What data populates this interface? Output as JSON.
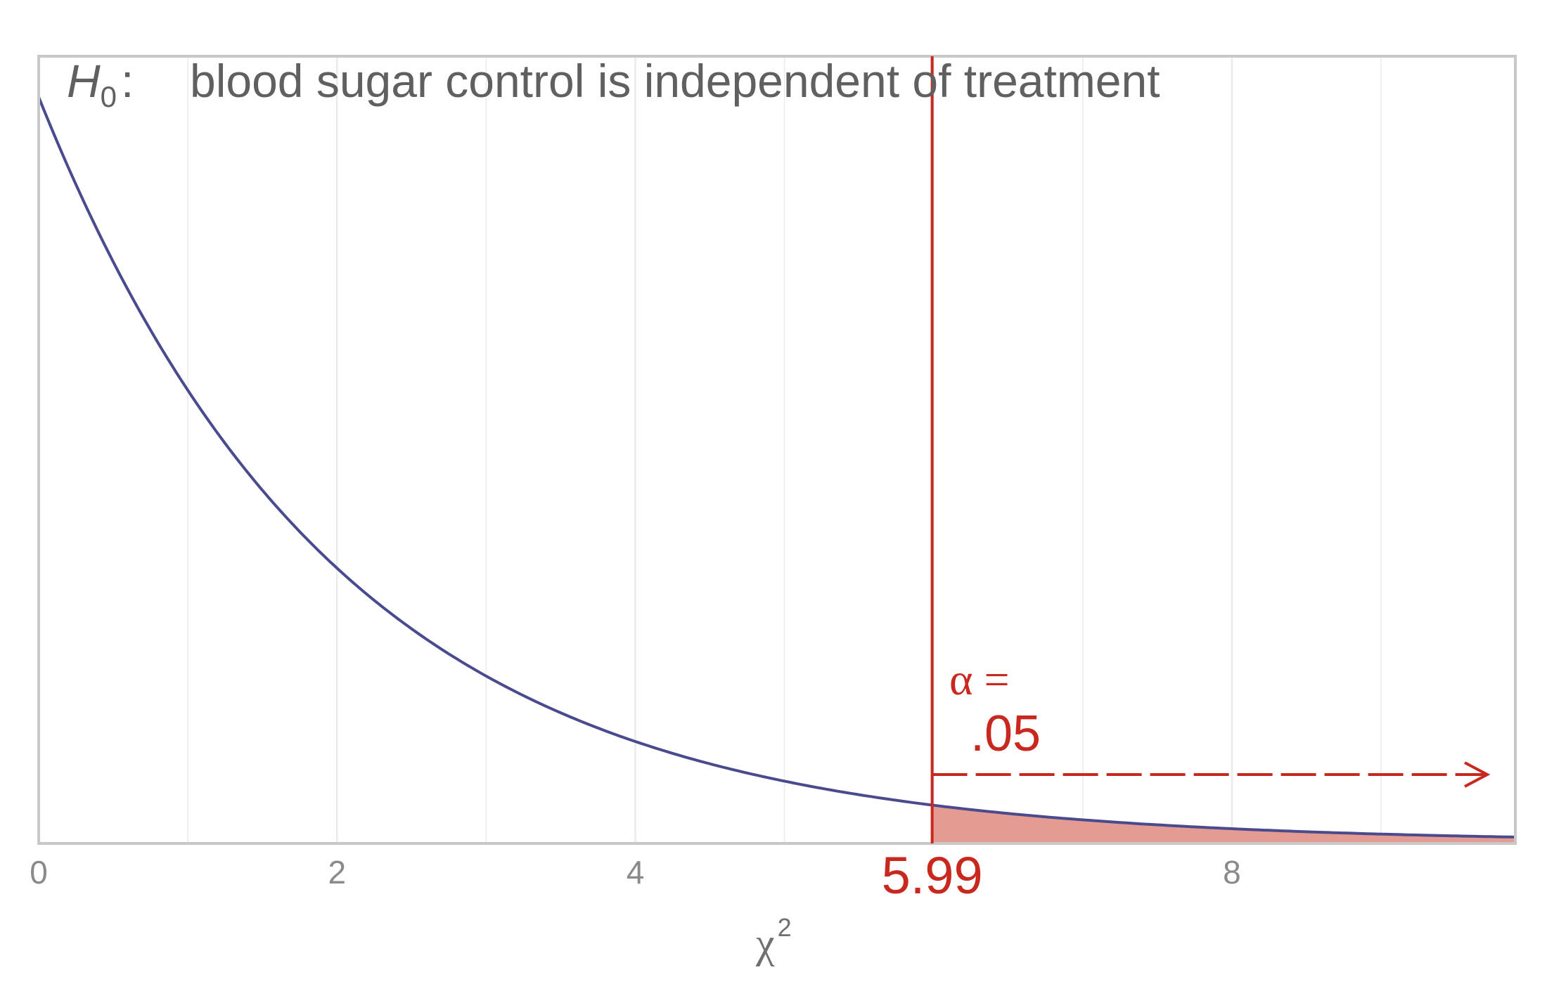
{
  "chart_data": {
    "type": "area",
    "distribution": "chi-square",
    "df": 2,
    "xlim": [
      0,
      9.9
    ],
    "x_ticks": [
      "0",
      "2",
      "4",
      "8"
    ],
    "grid": "vertical",
    "hypothesis_symbol": "H",
    "hypothesis_subscript": "0",
    "hypothesis_colon": ":",
    "hypothesis_text": "blood sugar control is independent of treatment",
    "critical_value": 5.99,
    "critical_label": "5.99",
    "alpha_label": "α =",
    "alpha_value": ".05",
    "xlabel_symbol": "χ",
    "xlabel_superscript": "2",
    "colors": {
      "curve": "#4a4a8e",
      "critical": "#c8281e",
      "tail_fill": "#e49b91",
      "grid": "#ebebeb",
      "frame": "#c8c8c8"
    }
  }
}
